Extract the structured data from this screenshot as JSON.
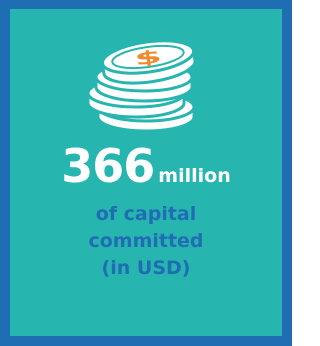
{
  "icon": {
    "symbol": "$"
  },
  "stat": {
    "number": "366",
    "unit": "million",
    "description": [
      "of capital",
      "committed",
      "(in USD)"
    ]
  }
}
